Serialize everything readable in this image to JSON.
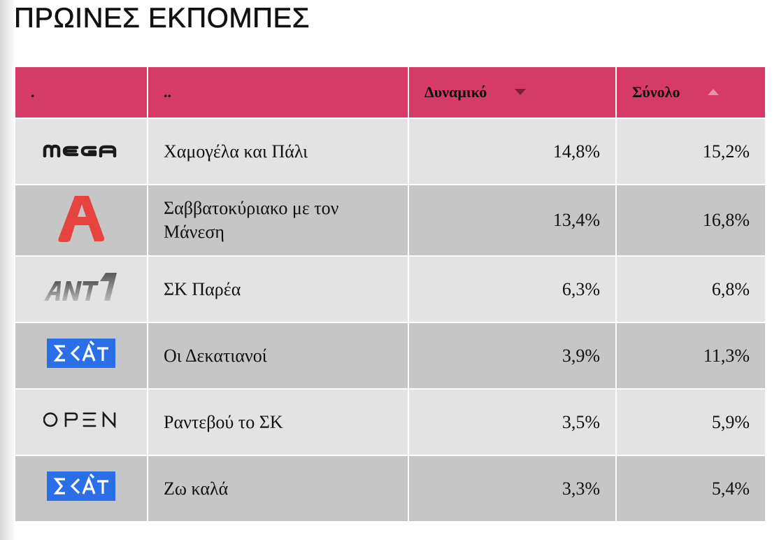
{
  "page": {
    "title": "ΠΡΩΙΝΕΣ ΕΚΠΟΜΠΕΣ"
  },
  "table": {
    "headers": {
      "channel": ".",
      "show": "..",
      "dynamic": "Δυναμικό",
      "total": "Σύνολο"
    },
    "sort": {
      "dynamic": "descending",
      "total": "ascending"
    },
    "rows": [
      {
        "channel_logo": "mega-logo",
        "show": "Χαμογέλα και Πάλι",
        "dynamic": "14,8%",
        "total": "15,2%"
      },
      {
        "channel_logo": "alpha-logo",
        "show": "Σαββατοκύριακο με τον Μάνεση",
        "dynamic": "13,4%",
        "total": "16,8%"
      },
      {
        "channel_logo": "ant1-logo",
        "show": "ΣΚ Παρέα",
        "dynamic": "6,3%",
        "total": "6,8%"
      },
      {
        "channel_logo": "skai-logo",
        "show": "Οι Δεκατιανοί",
        "dynamic": "3,9%",
        "total": "11,3%"
      },
      {
        "channel_logo": "open-logo",
        "show": "Ραντεβού το ΣΚ",
        "dynamic": "3,5%",
        "total": "5,9%"
      },
      {
        "channel_logo": "skai-logo",
        "show": "Ζω καλά",
        "dynamic": "3,3%",
        "total": "5,4%"
      }
    ]
  },
  "colors": {
    "header_bg": "#d63a66",
    "row_light": "#e3e3e3",
    "row_dark": "#c6c6c6",
    "alpha_red": "#e8443f",
    "skai_blue": "#2a6ee8"
  }
}
